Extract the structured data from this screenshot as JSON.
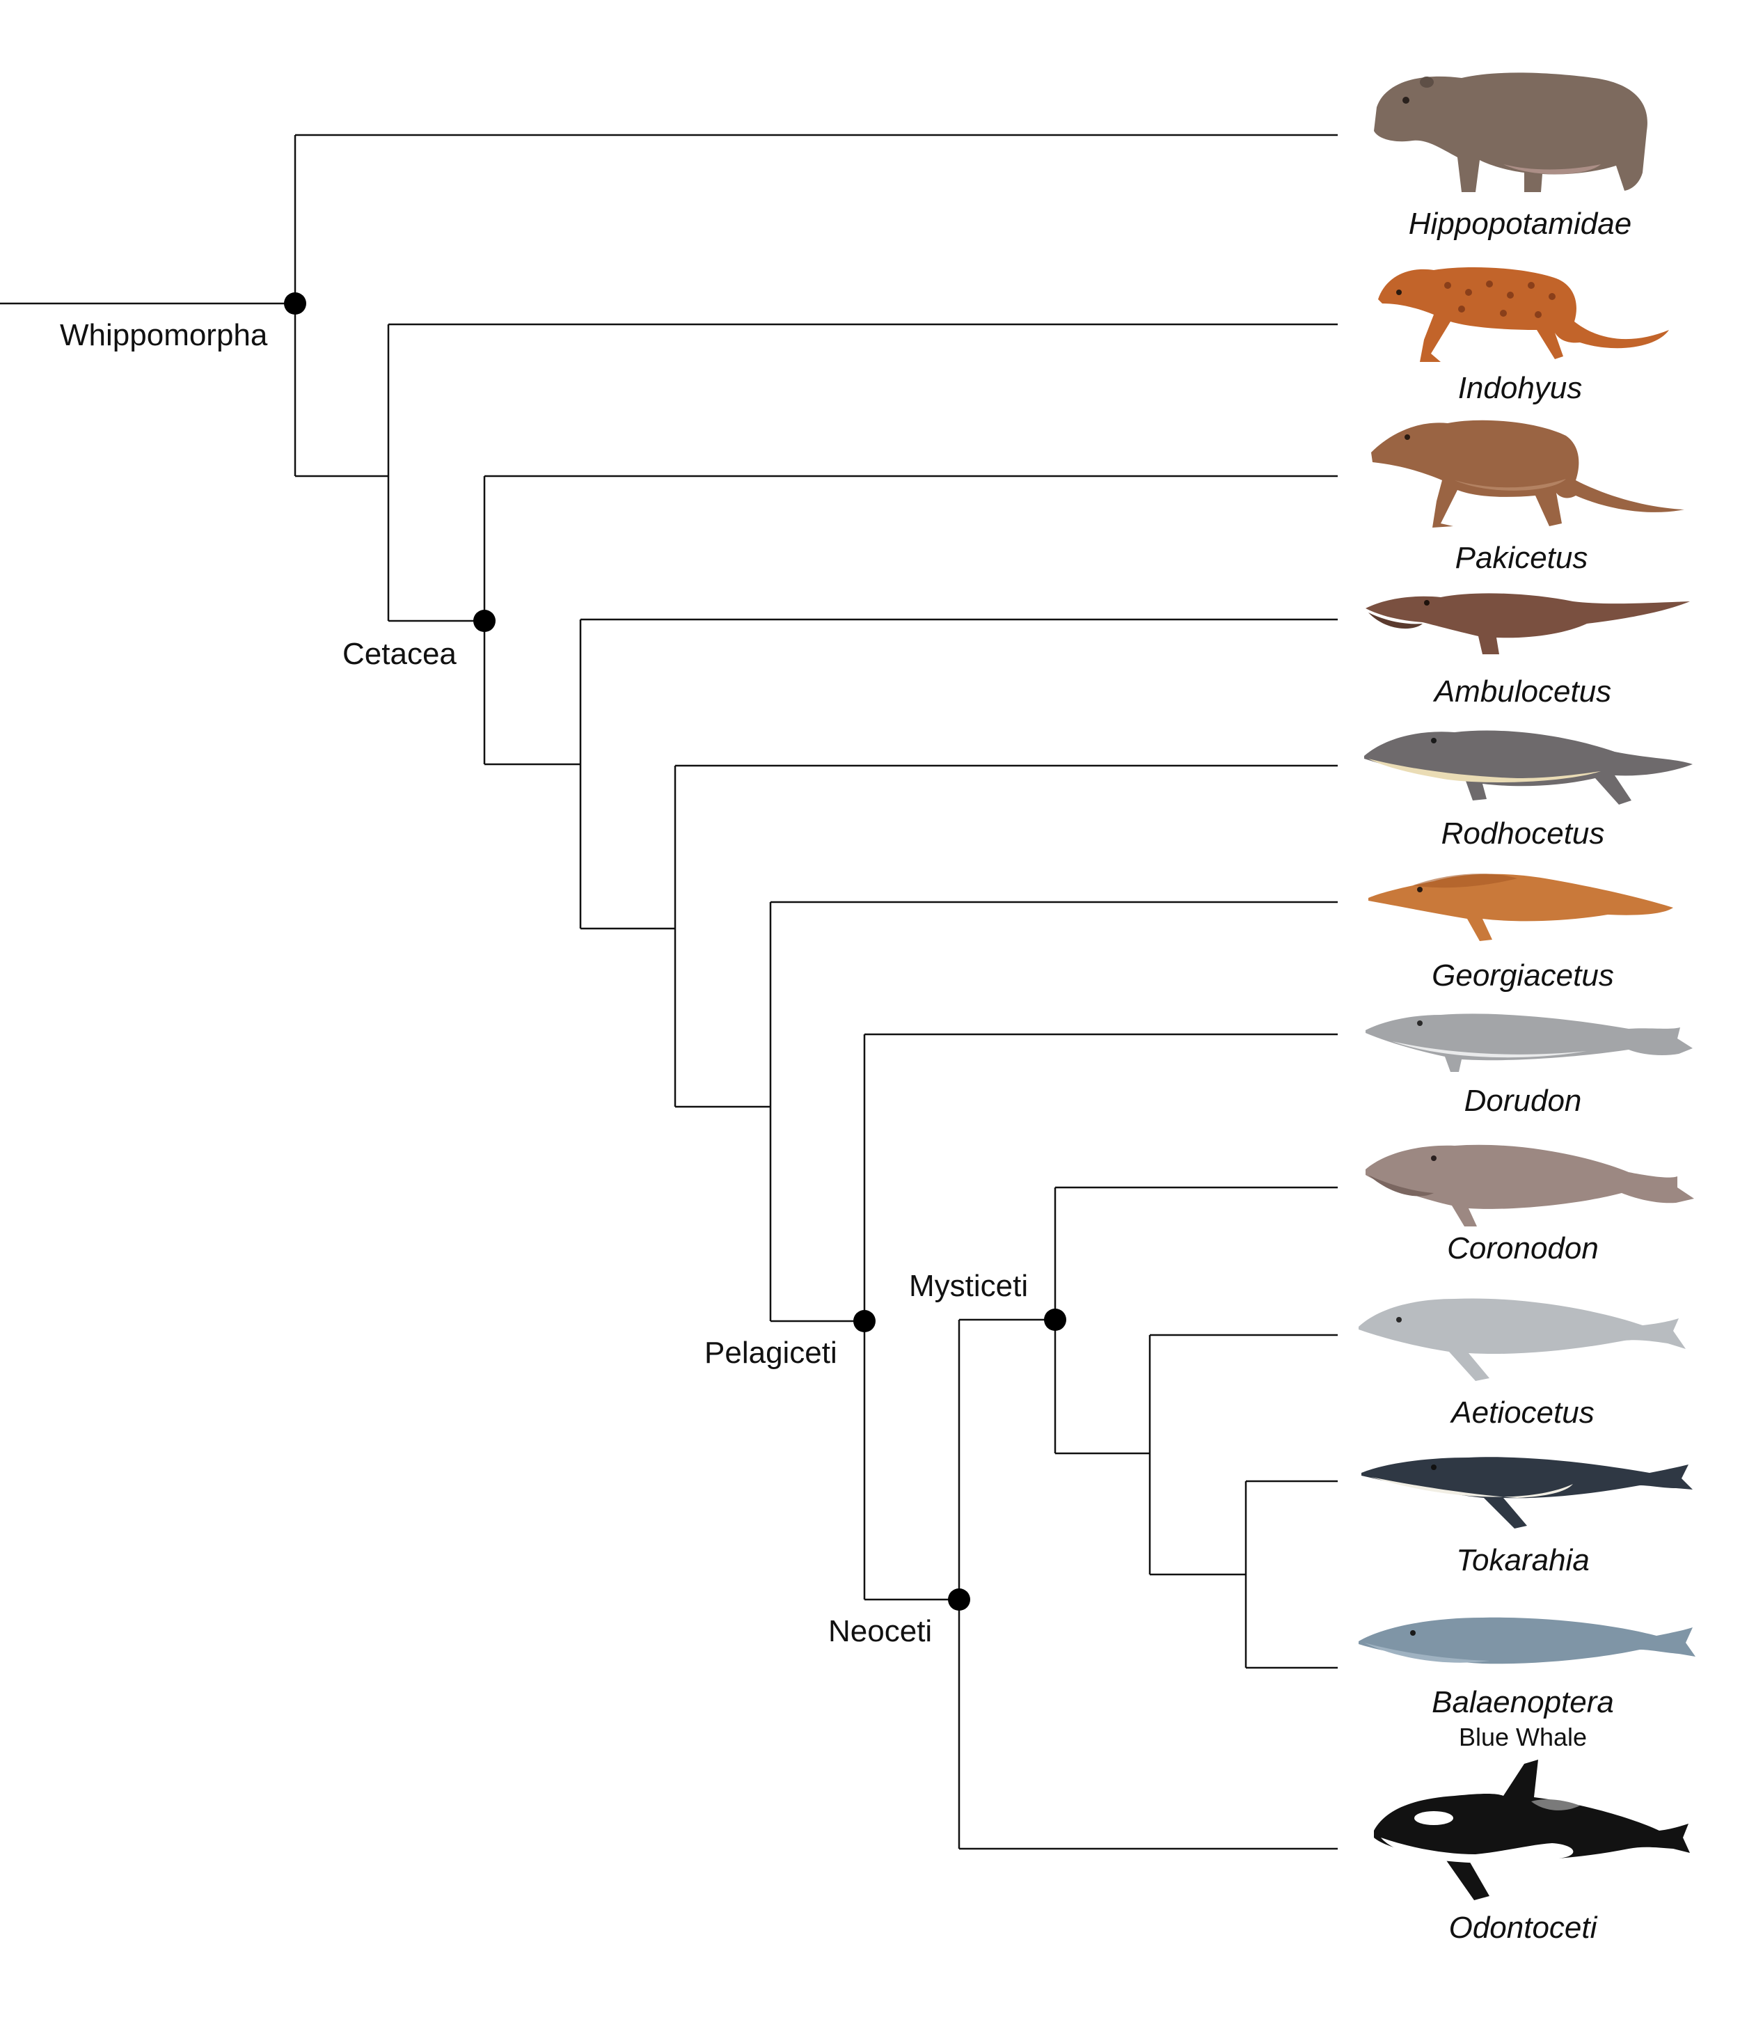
{
  "diagram": {
    "clades": {
      "whippomorpha": "Whippomorpha",
      "cetacea": "Cetacea",
      "pelagiceti": "Pelagiceti",
      "mysticeti": "Mysticeti",
      "neoceti": "Neoceti"
    },
    "taxa": [
      {
        "id": "hippopotamidae",
        "label": "Hippopotamidae",
        "color": "#7d6a5e"
      },
      {
        "id": "indohyus",
        "label": "Indohyus",
        "color": "#c2642a"
      },
      {
        "id": "pakicetus",
        "label": "Pakicetus",
        "color": "#9a6443"
      },
      {
        "id": "ambulocetus",
        "label": "Ambulocetus",
        "color": "#7a5040"
      },
      {
        "id": "rodhocetus",
        "label": "Rodhocetus",
        "color": "#6e6a6c"
      },
      {
        "id": "georgiacetus",
        "label": "Georgiacetus",
        "color": "#c9793a"
      },
      {
        "id": "dorudon",
        "label": "Dorudon",
        "color": "#a3a5a8"
      },
      {
        "id": "coronodon",
        "label": "Coronodon",
        "color": "#9c8882"
      },
      {
        "id": "aetiocetus",
        "label": "Aetiocetus",
        "color": "#b8bcc0"
      },
      {
        "id": "tokarahia",
        "label": "Tokarahia",
        "color": "#2f3844"
      },
      {
        "id": "balaenoptera",
        "label": "Balaenoptera",
        "common": "Blue Whale",
        "color": "#7f95a6"
      },
      {
        "id": "odontoceti",
        "label": "Odontoceti",
        "color": "#121212"
      }
    ]
  }
}
